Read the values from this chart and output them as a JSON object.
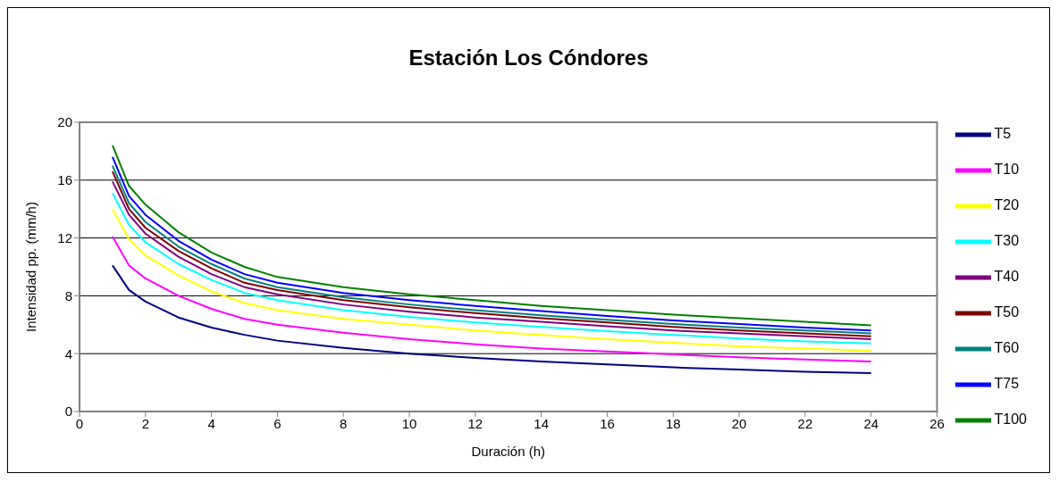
{
  "chart_data": {
    "type": "line",
    "title": "Estación Los Cóndores",
    "xlabel": "Duración (h)",
    "ylabel": "Intensidad pp. (mm/h)",
    "x": [
      1,
      1.5,
      2,
      3,
      4,
      5,
      6,
      8,
      10,
      12,
      14,
      16,
      18,
      20,
      22,
      24
    ],
    "series": [
      {
        "name": "T5",
        "color": "#000080",
        "values": [
          10.1,
          8.4,
          7.6,
          6.5,
          5.8,
          5.3,
          4.9,
          4.4,
          4.0,
          3.7,
          3.45,
          3.25,
          3.05,
          2.9,
          2.75,
          2.65
        ]
      },
      {
        "name": "T10",
        "color": "#ff00ff",
        "values": [
          12.1,
          10.1,
          9.2,
          8.0,
          7.1,
          6.4,
          6.0,
          5.45,
          5.0,
          4.65,
          4.35,
          4.15,
          3.95,
          3.75,
          3.6,
          3.45
        ]
      },
      {
        "name": "T20",
        "color": "#ffff00",
        "values": [
          14.0,
          11.9,
          10.8,
          9.4,
          8.3,
          7.5,
          7.0,
          6.4,
          6.0,
          5.6,
          5.3,
          5.0,
          4.75,
          4.5,
          4.35,
          4.2
        ]
      },
      {
        "name": "T30",
        "color": "#00ffff",
        "values": [
          15.1,
          12.9,
          11.7,
          10.2,
          9.1,
          8.2,
          7.7,
          7.0,
          6.55,
          6.15,
          5.85,
          5.55,
          5.3,
          5.05,
          4.85,
          4.7
        ]
      },
      {
        "name": "T40",
        "color": "#800080",
        "values": [
          15.9,
          13.6,
          12.3,
          10.7,
          9.5,
          8.6,
          8.1,
          7.4,
          6.9,
          6.5,
          6.2,
          5.9,
          5.6,
          5.4,
          5.2,
          5.0
        ]
      },
      {
        "name": "T50",
        "color": "#800000",
        "values": [
          16.6,
          14.0,
          12.7,
          11.1,
          9.9,
          8.9,
          8.4,
          7.7,
          7.2,
          6.8,
          6.45,
          6.15,
          5.85,
          5.6,
          5.4,
          5.2
        ]
      },
      {
        "name": "T60",
        "color": "#008080",
        "values": [
          17.0,
          14.4,
          13.1,
          11.4,
          10.2,
          9.2,
          8.6,
          7.9,
          7.4,
          7.0,
          6.65,
          6.35,
          6.05,
          5.8,
          5.6,
          5.4
        ]
      },
      {
        "name": "T75",
        "color": "#0000ff",
        "values": [
          17.6,
          14.9,
          13.6,
          11.8,
          10.5,
          9.5,
          8.9,
          8.2,
          7.7,
          7.3,
          6.95,
          6.6,
          6.3,
          6.05,
          5.8,
          5.6
        ]
      },
      {
        "name": "T100",
        "color": "#008000",
        "values": [
          18.4,
          15.6,
          14.3,
          12.4,
          11.0,
          10.0,
          9.3,
          8.6,
          8.1,
          7.7,
          7.3,
          7.0,
          6.7,
          6.45,
          6.2,
          5.95
        ]
      }
    ],
    "xlim": [
      0,
      26
    ],
    "xticks": [
      0,
      2,
      4,
      6,
      8,
      10,
      12,
      14,
      16,
      18,
      20,
      22,
      24,
      26
    ],
    "ylim": [
      0,
      20
    ],
    "yticks": [
      0,
      4,
      8,
      12,
      16,
      20
    ],
    "grid": "y",
    "legend": "right",
    "marker": "none",
    "line_style": "solid"
  }
}
